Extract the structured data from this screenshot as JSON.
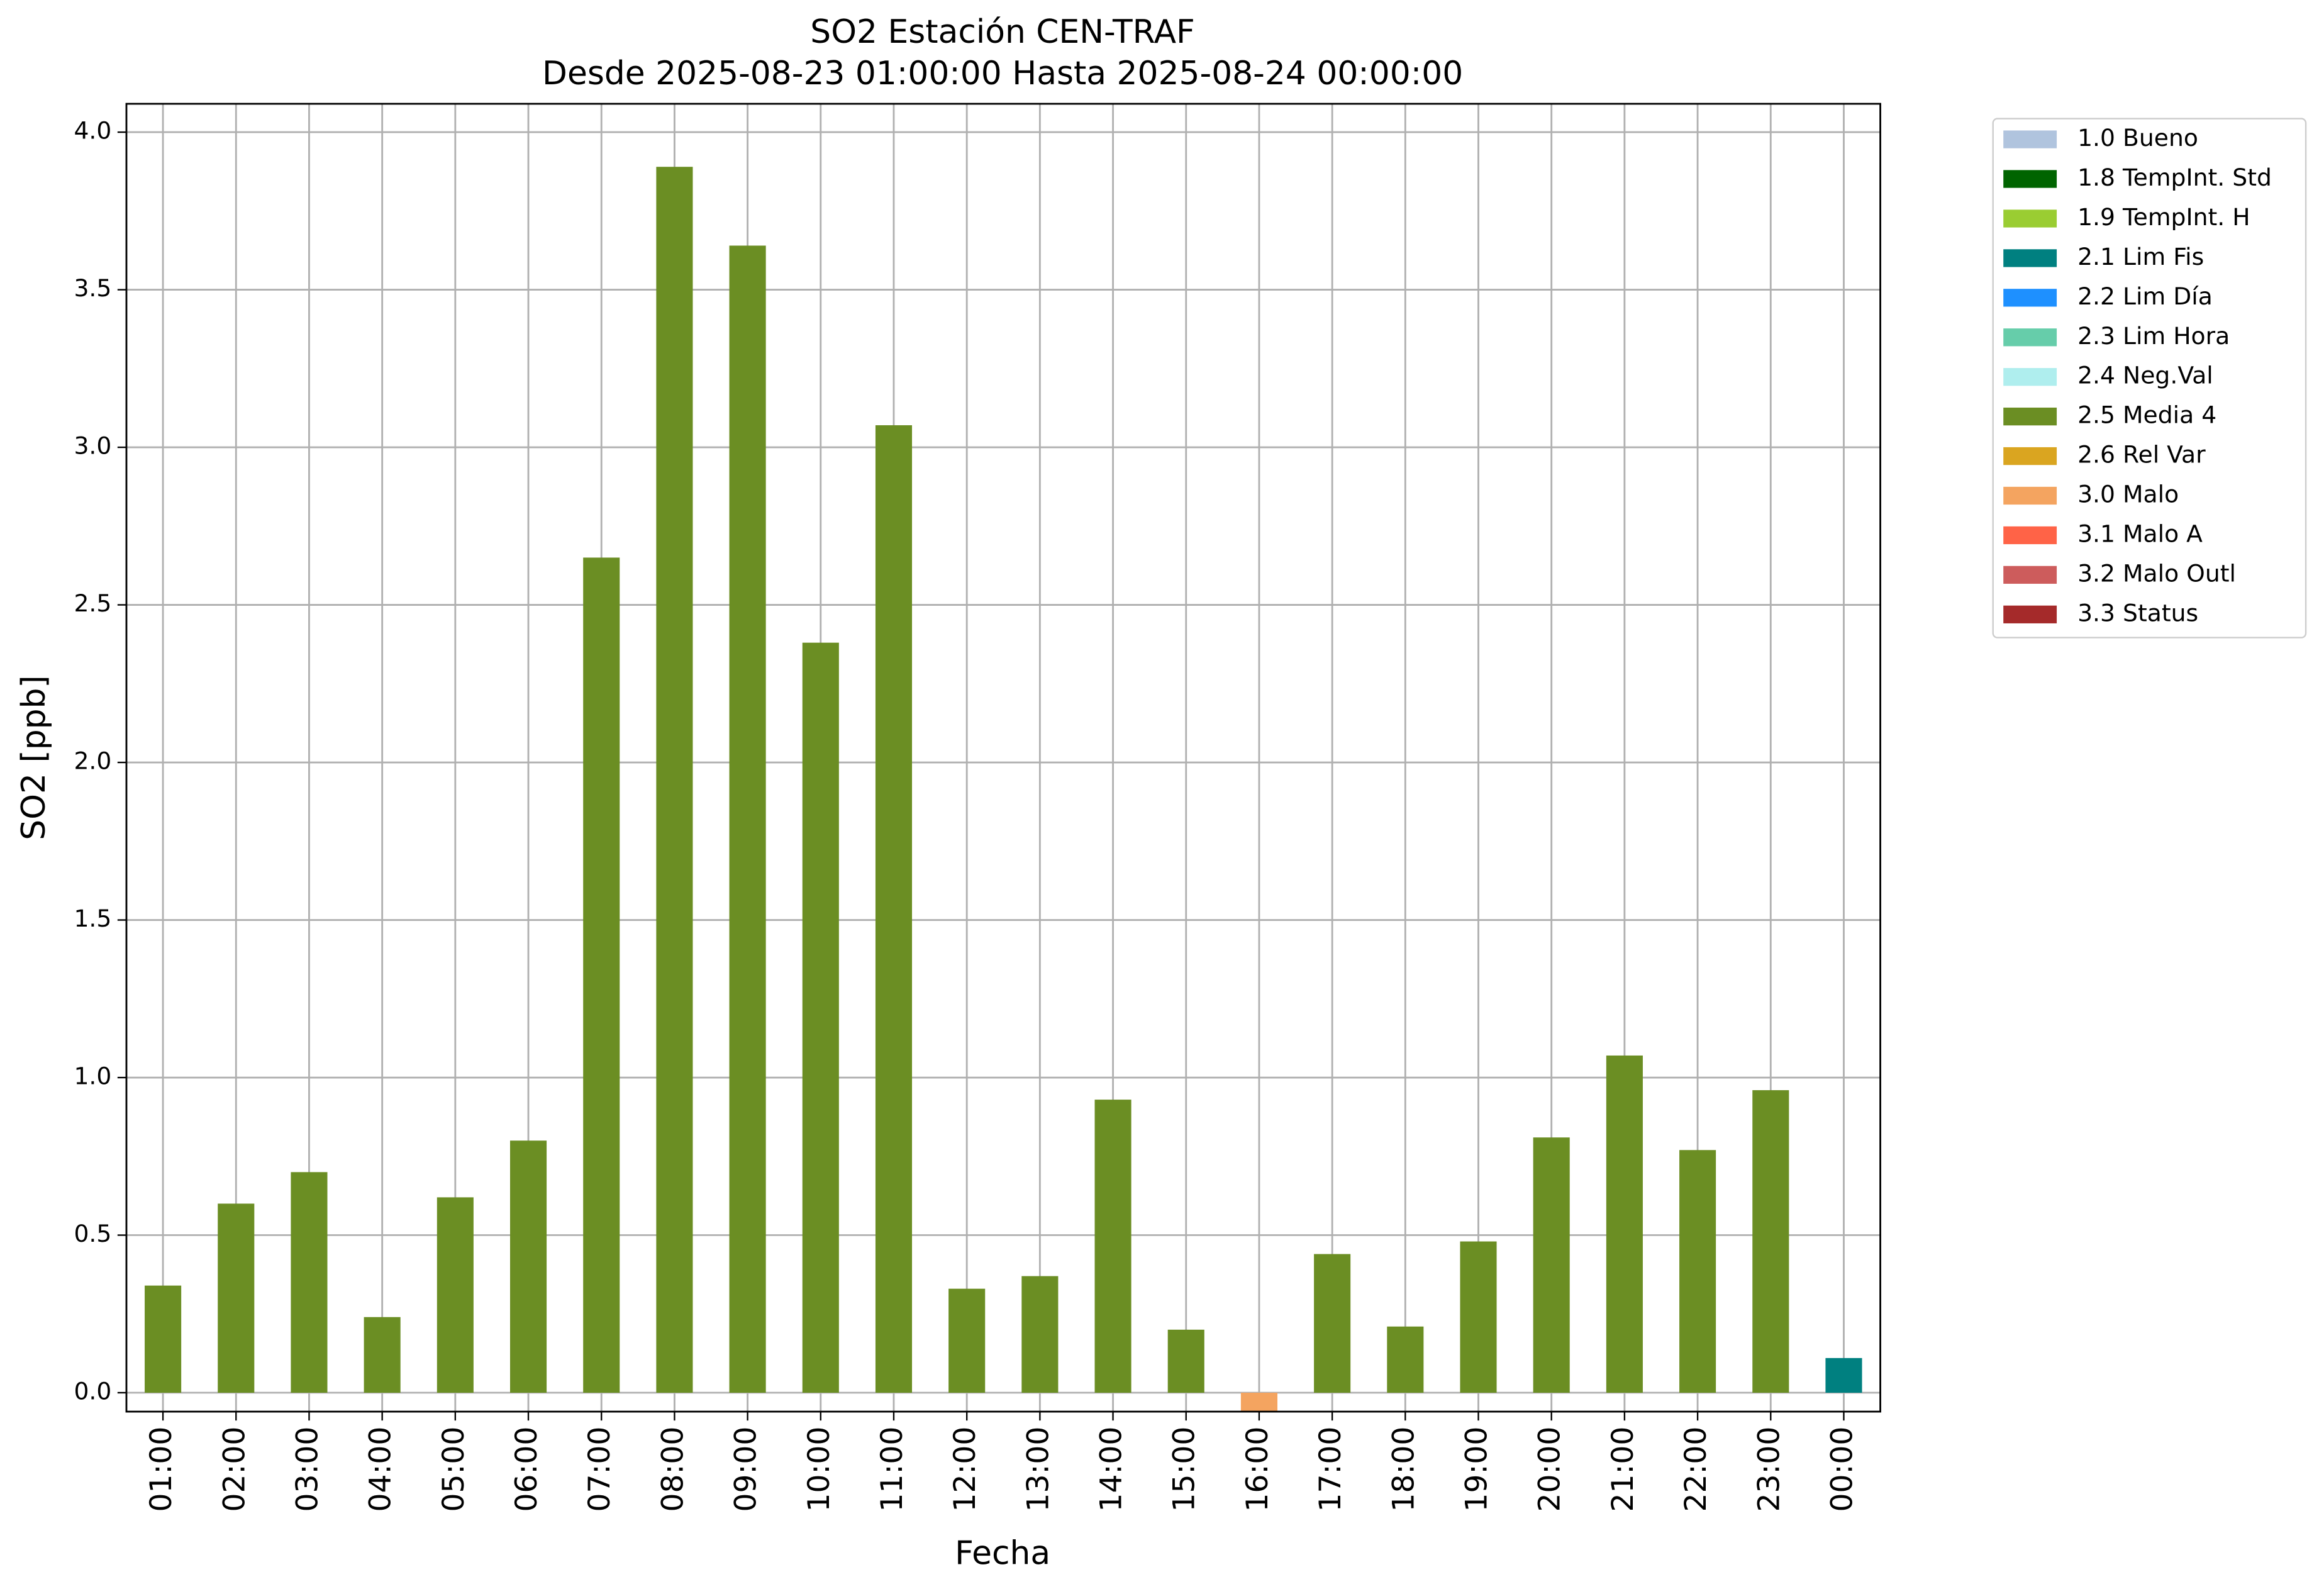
{
  "chart_data": {
    "type": "bar",
    "title": "SO2 Estación CEN-TRAF",
    "subtitle": "Desde 2025-08-23 01:00:00 Hasta 2025-08-24 00:00:00",
    "x_label": "Fecha",
    "y_label": "SO2 [ppb]",
    "categories": [
      "01:00",
      "02:00",
      "03:00",
      "04:00",
      "05:00",
      "06:00",
      "07:00",
      "08:00",
      "09:00",
      "10:00",
      "11:00",
      "12:00",
      "13:00",
      "14:00",
      "15:00",
      "16:00",
      "17:00",
      "18:00",
      "19:00",
      "20:00",
      "21:00",
      "22:00",
      "23:00",
      "00:00"
    ],
    "values": [
      0.34,
      0.6,
      0.7,
      0.24,
      0.62,
      0.8,
      2.65,
      3.89,
      3.64,
      2.38,
      3.07,
      0.33,
      0.37,
      0.93,
      0.2,
      -0.06,
      0.44,
      0.21,
      0.48,
      0.81,
      1.07,
      0.77,
      0.96,
      0.11
    ],
    "colors": [
      "#6b8e23",
      "#6b8e23",
      "#6b8e23",
      "#6b8e23",
      "#6b8e23",
      "#6b8e23",
      "#6b8e23",
      "#6b8e23",
      "#6b8e23",
      "#6b8e23",
      "#6b8e23",
      "#6b8e23",
      "#6b8e23",
      "#6b8e23",
      "#6b8e23",
      "#f4a460",
      "#6b8e23",
      "#6b8e23",
      "#6b8e23",
      "#6b8e23",
      "#6b8e23",
      "#6b8e23",
      "#6b8e23",
      "#008080"
    ],
    "ylim": [
      -0.06,
      4.09
    ],
    "yticks": [
      {
        "value": 0,
        "label": "0.0"
      },
      {
        "value": 0.5,
        "label": "0.5"
      },
      {
        "value": 1,
        "label": "1.0"
      },
      {
        "value": 1.5,
        "label": "1.5"
      },
      {
        "value": 2,
        "label": "2.0"
      },
      {
        "value": 2.5,
        "label": "2.5"
      },
      {
        "value": 3,
        "label": "3.0"
      },
      {
        "value": 3.5,
        "label": "3.5"
      },
      {
        "value": 4,
        "label": "4.0"
      }
    ],
    "grid": true,
    "legend_position": "outside-upper-right",
    "legend": [
      {
        "label": "1.0 Bueno",
        "color": "#b0c4de"
      },
      {
        "label": "1.8 TempInt. Std",
        "color": "#006400"
      },
      {
        "label": "1.9 TempInt. H",
        "color": "#9acd32"
      },
      {
        "label": "2.1 Lim Fis",
        "color": "#008080"
      },
      {
        "label": "2.2 Lim Día",
        "color": "#1e90ff"
      },
      {
        "label": "2.3 Lim Hora",
        "color": "#66cdaa"
      },
      {
        "label": "2.4 Neg.Val",
        "color": "#afeeee"
      },
      {
        "label": "2.5 Media 4",
        "color": "#6b8e23"
      },
      {
        "label": "2.6 Rel Var",
        "color": "#daa520"
      },
      {
        "label": "3.0 Malo",
        "color": "#f4a460"
      },
      {
        "label": "3.1 Malo A",
        "color": "#ff6347"
      },
      {
        "label": "3.2 Malo Outl",
        "color": "#cd5c5c"
      },
      {
        "label": "3.3 Status",
        "color": "#a52a2a"
      }
    ]
  }
}
